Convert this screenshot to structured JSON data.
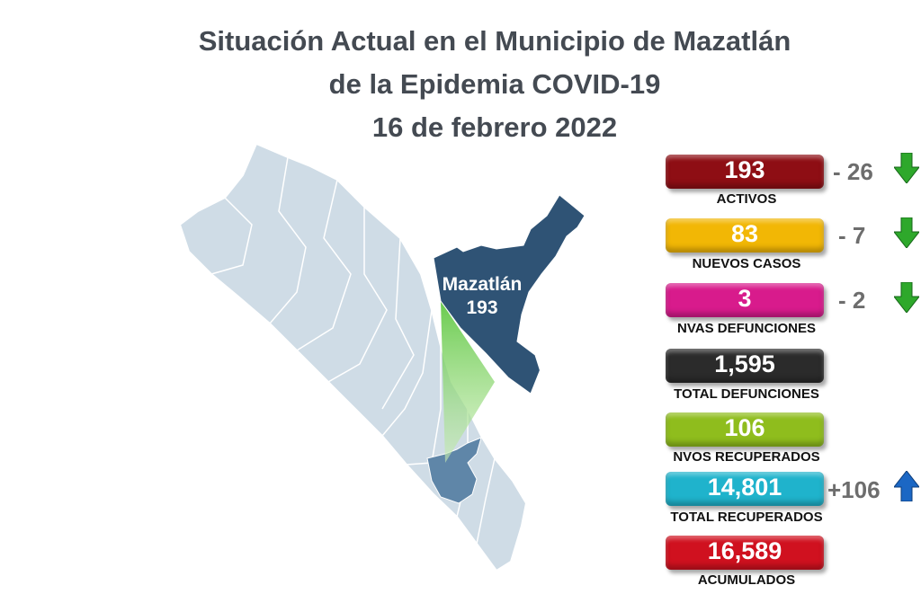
{
  "header": {
    "line1": "Situación Actual en el Municipio de Mazatlán",
    "line2": "de la Epidemia COVID-19",
    "line3": "16 de febrero 2022"
  },
  "map": {
    "municipality_label": "Mazatlán",
    "municipality_value": "193"
  },
  "stats": [
    {
      "value": "193",
      "label": "ACTIVOS",
      "color": "#8e0e14",
      "delta": "-  26",
      "trend": "down"
    },
    {
      "value": "83",
      "label": "NUEVOS CASOS",
      "color": "#f2b705",
      "delta": "-   7",
      "trend": "down"
    },
    {
      "value": "3",
      "label": "NVAS DEFUNCIONES",
      "color": "#d81b8c",
      "delta": "-   2",
      "trend": "down"
    },
    {
      "value": "1,595",
      "label": "TOTAL DEFUNCIONES",
      "color": "#2b2b2b",
      "delta": "",
      "trend": ""
    },
    {
      "value": "106",
      "label": "NVOS RECUPERADOS",
      "color": "#8fbd1d",
      "delta": "",
      "trend": ""
    },
    {
      "value": "14,801",
      "label": "TOTAL RECUPERADOS",
      "color": "#1fb3cc",
      "delta": "+106",
      "trend": "up"
    },
    {
      "value": "16,589",
      "label": "ACUMULADOS",
      "color": "#d0111f",
      "delta": "",
      "trend": ""
    }
  ],
  "colors": {
    "title": "#444a52",
    "state": "#cfdce6",
    "municipality": "#2f5375",
    "arrow_down": "#2ea82b",
    "arrow_up": "#1b67c4",
    "delta_text": "#6d6d6d"
  },
  "icons": {
    "down": "arrow-down-icon",
    "up": "arrow-up-icon"
  }
}
